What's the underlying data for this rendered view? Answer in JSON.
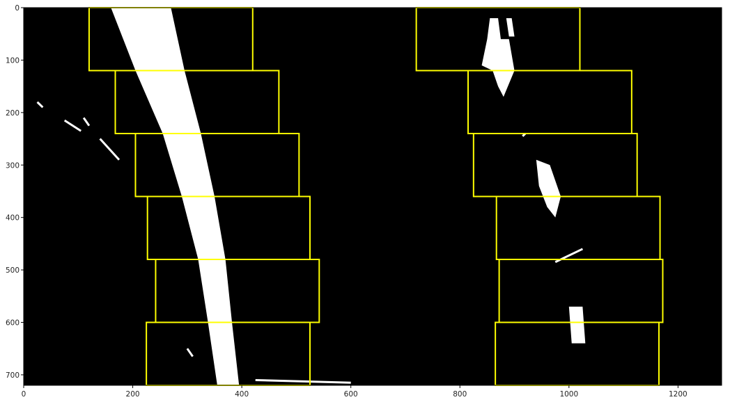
{
  "chart_data": {
    "type": "image",
    "title": "",
    "xlabel": "",
    "ylabel": "",
    "xlim": [
      0,
      1280
    ],
    "ylim": [
      720,
      0
    ],
    "grid": false,
    "background_color": "#000000",
    "window_color": "#ffff00",
    "pixel_color": "#ffffff",
    "x_ticks": [
      "0",
      "200",
      "400",
      "600",
      "800",
      "1000",
      "1200"
    ],
    "x_tick_values": [
      0,
      200,
      400,
      600,
      800,
      1000,
      1200
    ],
    "y_ticks": [
      "0",
      "100",
      "200",
      "300",
      "400",
      "500",
      "600",
      "700"
    ],
    "y_tick_values": [
      0,
      100,
      200,
      300,
      400,
      500,
      600,
      700
    ],
    "series": [
      {
        "windows": [
          {
            "x0": 120,
            "x1": 420,
            "y0": 0,
            "y1": 120
          },
          {
            "x0": 168,
            "x1": 468,
            "y0": 120,
            "y1": 240
          },
          {
            "x0": 205,
            "x1": 505,
            "y0": 240,
            "y1": 360
          },
          {
            "x0": 227,
            "x1": 525,
            "y0": 360,
            "y1": 480
          },
          {
            "x0": 242,
            "x1": 542,
            "y0": 480,
            "y1": 600
          },
          {
            "x0": 225,
            "x1": 525,
            "y0": 600,
            "y1": 720
          }
        ],
        "lane_center_x": [
          215,
          250,
          290,
          320,
          345,
          360,
          375
        ],
        "lane_center_y": [
          0,
          120,
          240,
          360,
          480,
          600,
          720
        ]
      },
      {
        "windows": [
          {
            "x0": 720,
            "x1": 1020,
            "y0": 0,
            "y1": 120
          },
          {
            "x0": 815,
            "x1": 1115,
            "y0": 120,
            "y1": 240
          },
          {
            "x0": 825,
            "x1": 1125,
            "y0": 240,
            "y1": 360
          },
          {
            "x0": 867,
            "x1": 1167,
            "y0": 360,
            "y1": 480
          },
          {
            "x0": 872,
            "x1": 1172,
            "y0": 480,
            "y1": 600
          },
          {
            "x0": 865,
            "x1": 1165,
            "y0": 600,
            "y1": 720
          }
        ],
        "blobs": [
          {
            "x": [
              850,
              900,
              880,
              930
            ],
            "y": [
              20,
              100,
              60,
              160
            ]
          },
          {
            "x": [
              940,
              980,
              960
            ],
            "y": [
              290,
              400,
              350
            ]
          },
          {
            "x": [
              1000,
              1020
            ],
            "y": [
              570,
              640
            ]
          }
        ]
      }
    ]
  }
}
